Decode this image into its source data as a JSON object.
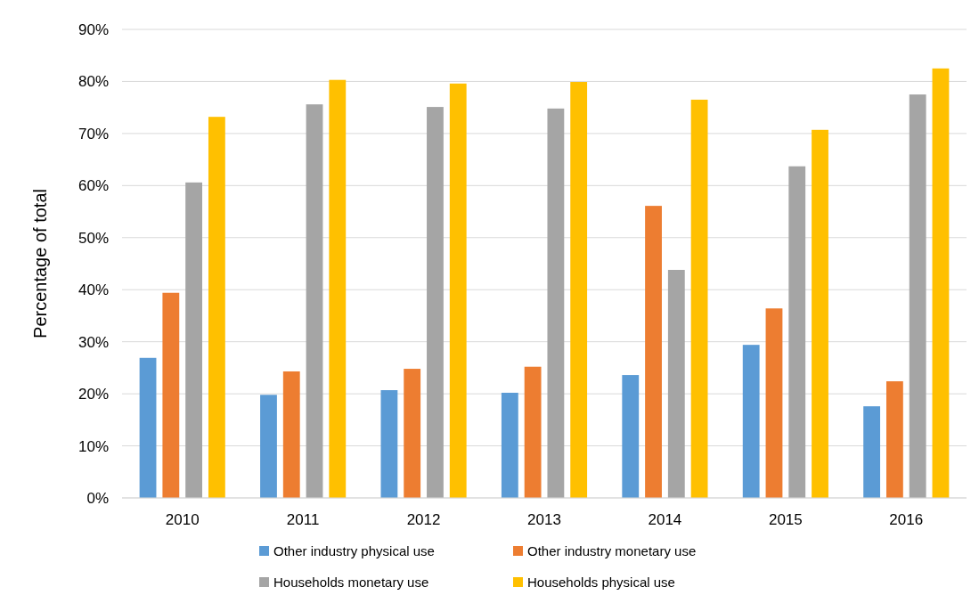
{
  "chart_data": {
    "type": "bar",
    "ylabel": "Percentage of total",
    "categories": [
      "2010",
      "2011",
      "2012",
      "2013",
      "2014",
      "2015",
      "2016"
    ],
    "series": [
      {
        "name": "Other industry physical use",
        "color": "#5b9bd5",
        "values": [
          26.9,
          19.8,
          20.7,
          20.2,
          23.6,
          29.4,
          17.6
        ]
      },
      {
        "name": "Other industry monetary use",
        "color": "#ed7d31",
        "values": [
          39.4,
          24.3,
          24.8,
          25.2,
          56.1,
          36.4,
          22.4
        ]
      },
      {
        "name": "Households monetary use",
        "color": "#a5a5a5",
        "values": [
          60.6,
          75.6,
          75.1,
          74.8,
          43.8,
          63.7,
          77.5
        ]
      },
      {
        "name": "Households physical use",
        "color": "#ffc000",
        "values": [
          73.2,
          80.3,
          79.6,
          79.9,
          76.5,
          70.7,
          82.5
        ]
      }
    ],
    "ylim": [
      0,
      90
    ],
    "yticks": [
      {
        "value": 0,
        "label": "0%"
      },
      {
        "value": 10,
        "label": "10%"
      },
      {
        "value": 20,
        "label": "20%"
      },
      {
        "value": 30,
        "label": "30%"
      },
      {
        "value": 40,
        "label": "40%"
      },
      {
        "value": 50,
        "label": "50%"
      },
      {
        "value": 60,
        "label": "60%"
      },
      {
        "value": 70,
        "label": "70%"
      },
      {
        "value": 80,
        "label": "80%"
      },
      {
        "value": 90,
        "label": "90%"
      }
    ],
    "grid": "y",
    "legend": "bottom"
  }
}
